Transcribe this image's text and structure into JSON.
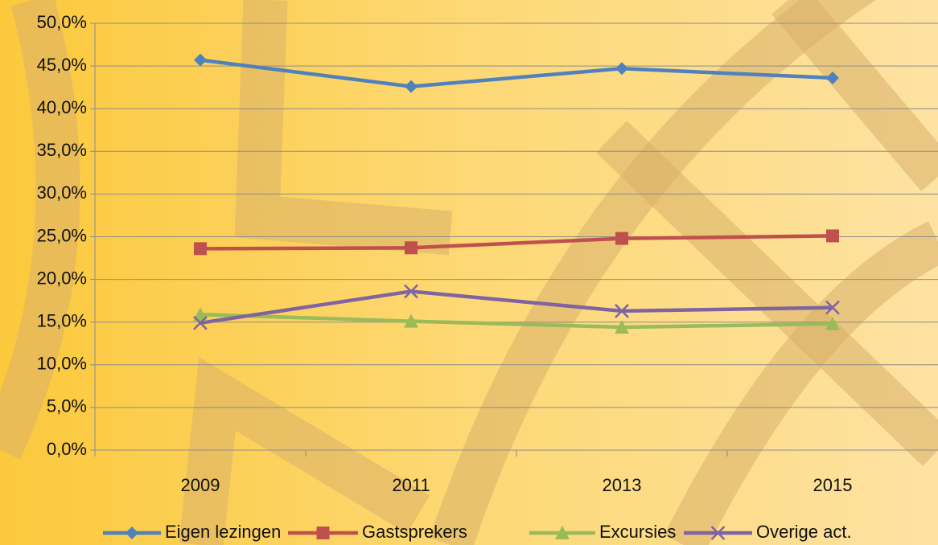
{
  "chart_data": {
    "type": "line",
    "categories": [
      "2009",
      "2011",
      "2013",
      "2015"
    ],
    "series": [
      {
        "name": "Eigen lezingen",
        "color": "#4f81bd",
        "values": [
          45.7,
          42.6,
          44.7,
          43.6
        ]
      },
      {
        "name": "Gastsprekers",
        "color": "#c0504d",
        "values": [
          23.6,
          23.7,
          24.8,
          25.1
        ]
      },
      {
        "name": "Excursies",
        "color": "#9bbb59",
        "values": [
          15.9,
          15.1,
          14.4,
          14.8
        ]
      },
      {
        "name": "Overige act.",
        "color": "#8064a2",
        "values": [
          14.9,
          18.6,
          16.3,
          16.7
        ]
      }
    ],
    "ylim": [
      0,
      50
    ],
    "yticks": [
      {
        "value": 0,
        "label": "0,0%"
      },
      {
        "value": 5,
        "label": "5,0%"
      },
      {
        "value": 10,
        "label": "10,0%"
      },
      {
        "value": 15,
        "label": "15,0%"
      },
      {
        "value": 20,
        "label": "20,0%"
      },
      {
        "value": 25,
        "label": "25,0%"
      },
      {
        "value": 30,
        "label": "30,0%"
      },
      {
        "value": 35,
        "label": "35,0%"
      },
      {
        "value": 40,
        "label": "40,0%"
      },
      {
        "value": 45,
        "label": "45,0%"
      },
      {
        "value": 50,
        "label": "50,0%"
      }
    ],
    "grid": true,
    "legend": "bottom"
  }
}
